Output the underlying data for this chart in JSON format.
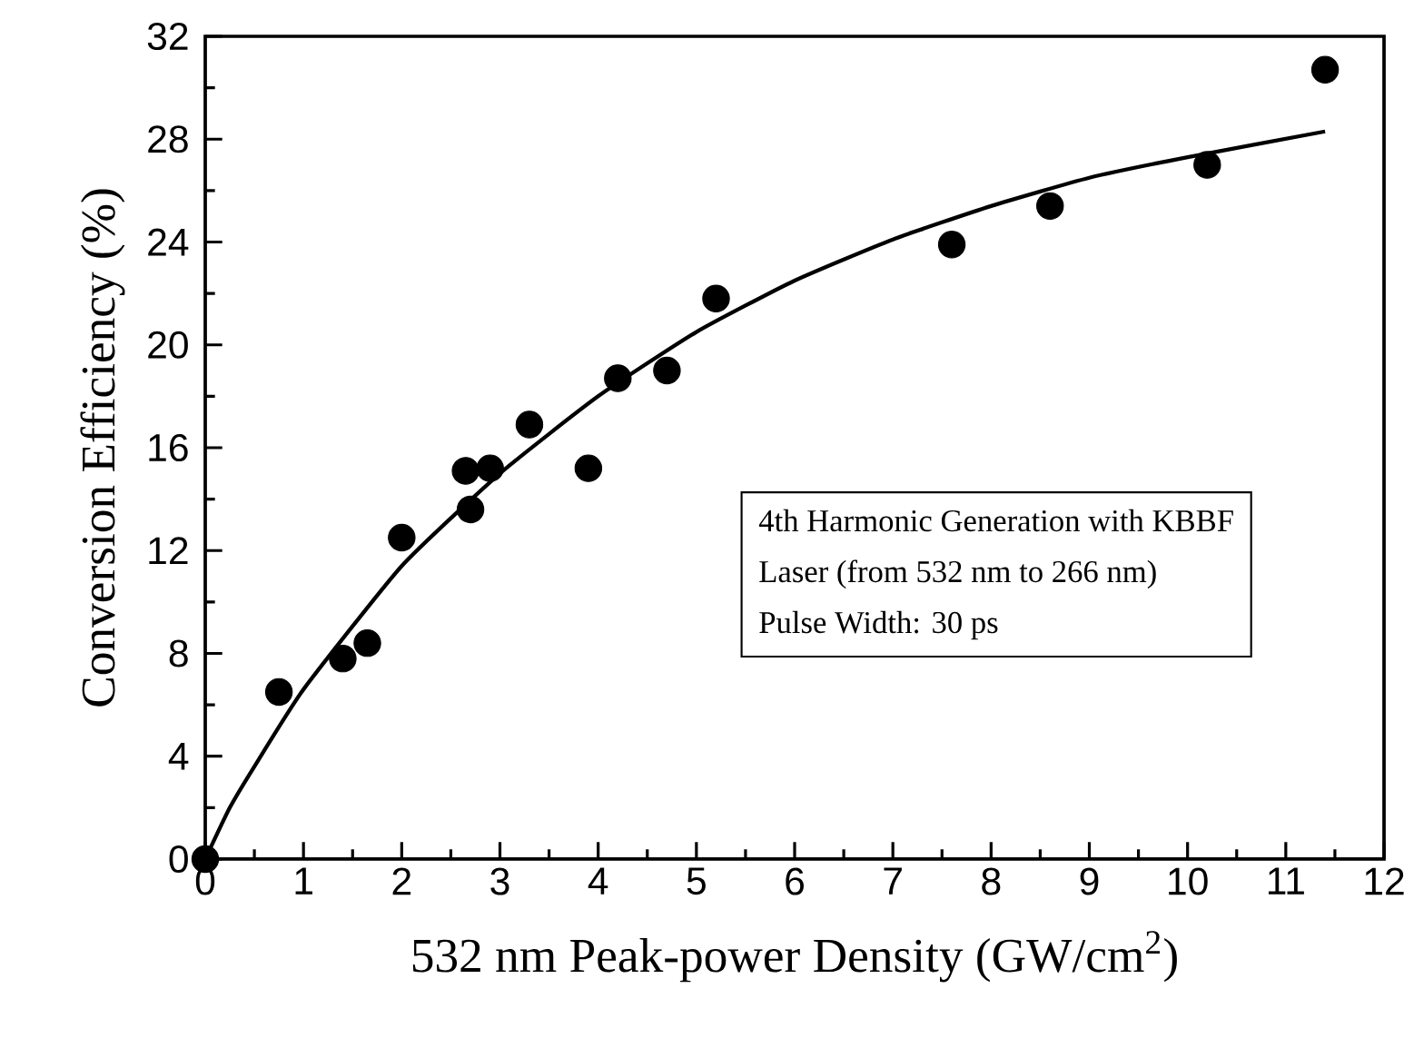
{
  "chart_data": {
    "type": "scatter",
    "xlabel": "532 nm Peak-power Density (GW/cm$^{2}$)",
    "ylabel": "Conversion Efficiency (%)",
    "annotations": [
      "4th Harmonic Generation with KBBF",
      "Laser (from 532 nm to 266 nm)",
      "Pulse Width: 30 ps"
    ],
    "xlim": [
      0,
      12
    ],
    "ylim": [
      0,
      32
    ],
    "xticks": [
      0,
      1,
      2,
      3,
      4,
      5,
      6,
      7,
      8,
      9,
      10,
      11,
      12
    ],
    "yticks": [
      0,
      4,
      8,
      12,
      16,
      20,
      24,
      28,
      32
    ],
    "grid": false,
    "series": [
      {
        "color": "#000000",
        "marker": "circle",
        "x": [
          0,
          0.75,
          1.4,
          1.65,
          2.0,
          2.65,
          2.9,
          2.7,
          3.3,
          3.9,
          4.2,
          4.7,
          5.2,
          7.6,
          8.6,
          10.2,
          11.4
        ],
        "values": [
          0,
          6.5,
          7.8,
          8.4,
          12.5,
          15.1,
          15.2,
          13.6,
          16.9,
          15.2,
          18.7,
          19.0,
          21.8,
          23.9,
          25.4,
          27.0,
          30.7
        ]
      },
      {
        "type": "line",
        "color": "#000000",
        "marker": "none",
        "line_style": "solid",
        "x": [
          0,
          0.25,
          0.5,
          1,
          2,
          3,
          4,
          5,
          6,
          7,
          8,
          9,
          10,
          11.4
        ],
        "values": [
          0,
          2.0,
          3.6,
          6.6,
          11.4,
          15.0,
          18.0,
          20.5,
          22.5,
          24.1,
          25.4,
          26.5,
          27.3,
          28.3
        ]
      }
    ]
  }
}
